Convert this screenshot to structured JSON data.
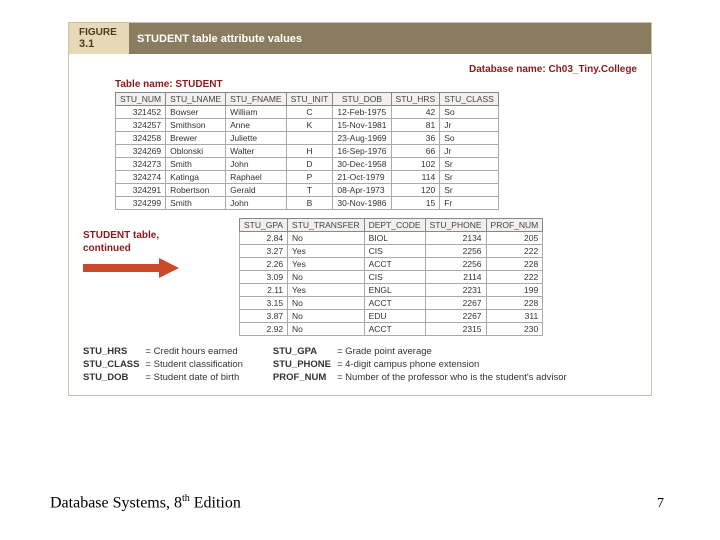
{
  "figure": {
    "label_line1": "FIGURE",
    "label_line2": "3.1",
    "title": "STUDENT table attribute values",
    "db_name_label": "Database name: Ch03_Tiny.College",
    "table_name_label": "Table name: STUDENT",
    "continued_label_l1": "STUDENT table,",
    "continued_label_l2": "continued"
  },
  "table1": {
    "columns": [
      "STU_NUM",
      "STU_LNAME",
      "STU_FNAME",
      "STU_INIT",
      "STU_DOB",
      "STU_HRS",
      "STU_CLASS"
    ],
    "rows": [
      [
        "321452",
        "Bowser",
        "William",
        "C",
        "12-Feb-1975",
        "42",
        "So"
      ],
      [
        "324257",
        "Smithson",
        "Anne",
        "K",
        "15-Nov-1981",
        "81",
        "Jr"
      ],
      [
        "324258",
        "Brewer",
        "Juliette",
        "",
        "23-Aug-1969",
        "36",
        "So"
      ],
      [
        "324269",
        "Oblonski",
        "Walter",
        "H",
        "16-Sep-1976",
        "66",
        "Jr"
      ],
      [
        "324273",
        "Smith",
        "John",
        "D",
        "30-Dec-1958",
        "102",
        "Sr"
      ],
      [
        "324274",
        "Katinga",
        "Raphael",
        "P",
        "21-Oct-1979",
        "114",
        "Sr"
      ],
      [
        "324291",
        "Robertson",
        "Gerald",
        "T",
        "08-Apr-1973",
        "120",
        "Sr"
      ],
      [
        "324299",
        "Smith",
        "John",
        "B",
        "30-Nov-1986",
        "15",
        "Fr"
      ]
    ]
  },
  "table2": {
    "columns": [
      "STU_GPA",
      "STU_TRANSFER",
      "DEPT_CODE",
      "STU_PHONE",
      "PROF_NUM"
    ],
    "rows": [
      [
        "2.84",
        "No",
        "BIOL",
        "2134",
        "205"
      ],
      [
        "3.27",
        "Yes",
        "CIS",
        "2256",
        "222"
      ],
      [
        "2.26",
        "Yes",
        "ACCT",
        "2256",
        "228"
      ],
      [
        "3.09",
        "No",
        "CIS",
        "2114",
        "222"
      ],
      [
        "2.11",
        "Yes",
        "ENGL",
        "2231",
        "199"
      ],
      [
        "3.15",
        "No",
        "ACCT",
        "2267",
        "228"
      ],
      [
        "3.87",
        "No",
        "EDU",
        "2267",
        "311"
      ],
      [
        "2.92",
        "No",
        "ACCT",
        "2315",
        "230"
      ]
    ]
  },
  "legend": {
    "left": [
      [
        "STU_HRS",
        "= Credit hours earned"
      ],
      [
        "STU_CLASS",
        "= Student classification"
      ],
      [
        "STU_DOB",
        "= Student date of birth"
      ]
    ],
    "right": [
      [
        "STU_GPA",
        "= Grade point average"
      ],
      [
        "STU_PHONE",
        "= 4-digit campus phone extension"
      ],
      [
        "PROF_NUM",
        "= Number of the professor who is the student's advisor"
      ]
    ]
  },
  "footer": {
    "text_prefix": "Database Systems, 8",
    "text_suffix": " Edition",
    "superscript": "th",
    "page": "7"
  },
  "style": {
    "arrow_color": "#c84a2a"
  }
}
